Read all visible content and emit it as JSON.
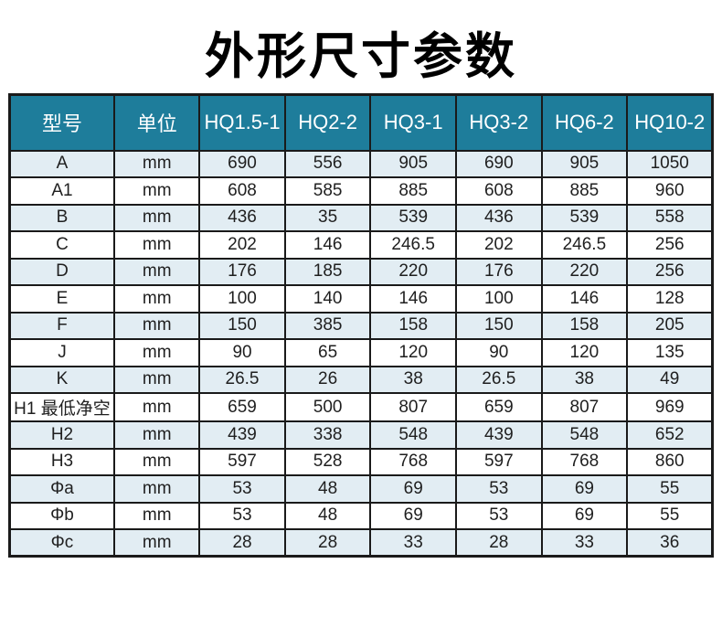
{
  "page": {
    "title": "外形尺寸参数"
  },
  "table": {
    "headers": [
      "型号",
      "单位",
      "HQ1.5-1",
      "HQ2-2",
      "HQ3-1",
      "HQ3-2",
      "HQ6-2",
      "HQ10-2"
    ],
    "rows": [
      [
        "A",
        "mm",
        "690",
        "556",
        "905",
        "690",
        "905",
        "1050"
      ],
      [
        "A1",
        "mm",
        "608",
        "585",
        "885",
        "608",
        "885",
        "960"
      ],
      [
        "B",
        "mm",
        "436",
        "35",
        "539",
        "436",
        "539",
        "558"
      ],
      [
        "C",
        "mm",
        "202",
        "146",
        "246.5",
        "202",
        "246.5",
        "256"
      ],
      [
        "D",
        "mm",
        "176",
        "185",
        "220",
        "176",
        "220",
        "256"
      ],
      [
        "E",
        "mm",
        "100",
        "140",
        "146",
        "100",
        "146",
        "128"
      ],
      [
        "F",
        "mm",
        "150",
        "385",
        "158",
        "150",
        "158",
        "205"
      ],
      [
        "J",
        "mm",
        "90",
        "65",
        "120",
        "90",
        "120",
        "135"
      ],
      [
        "K",
        "mm",
        "26.5",
        "26",
        "38",
        "26.5",
        "38",
        "49"
      ],
      [
        "H1 最低净空",
        "mm",
        "659",
        "500",
        "807",
        "659",
        "807",
        "969"
      ],
      [
        "H2",
        "mm",
        "439",
        "338",
        "548",
        "439",
        "548",
        "652"
      ],
      [
        "H3",
        "mm",
        "597",
        "528",
        "768",
        "597",
        "768",
        "860"
      ],
      [
        "Φa",
        "mm",
        "53",
        "48",
        "69",
        "53",
        "69",
        "55"
      ],
      [
        "Φb",
        "mm",
        "53",
        "48",
        "69",
        "53",
        "69",
        "55"
      ],
      [
        "Φc",
        "mm",
        "28",
        "28",
        "33",
        "28",
        "33",
        "36"
      ]
    ],
    "colors": {
      "header_bg": "#1e7d9b",
      "header_text": "#ffffff",
      "stripe_bg": "#e2edf3",
      "row_bg": "#ffffff",
      "border": "#1a1a1a",
      "title_text": "#000000"
    }
  }
}
